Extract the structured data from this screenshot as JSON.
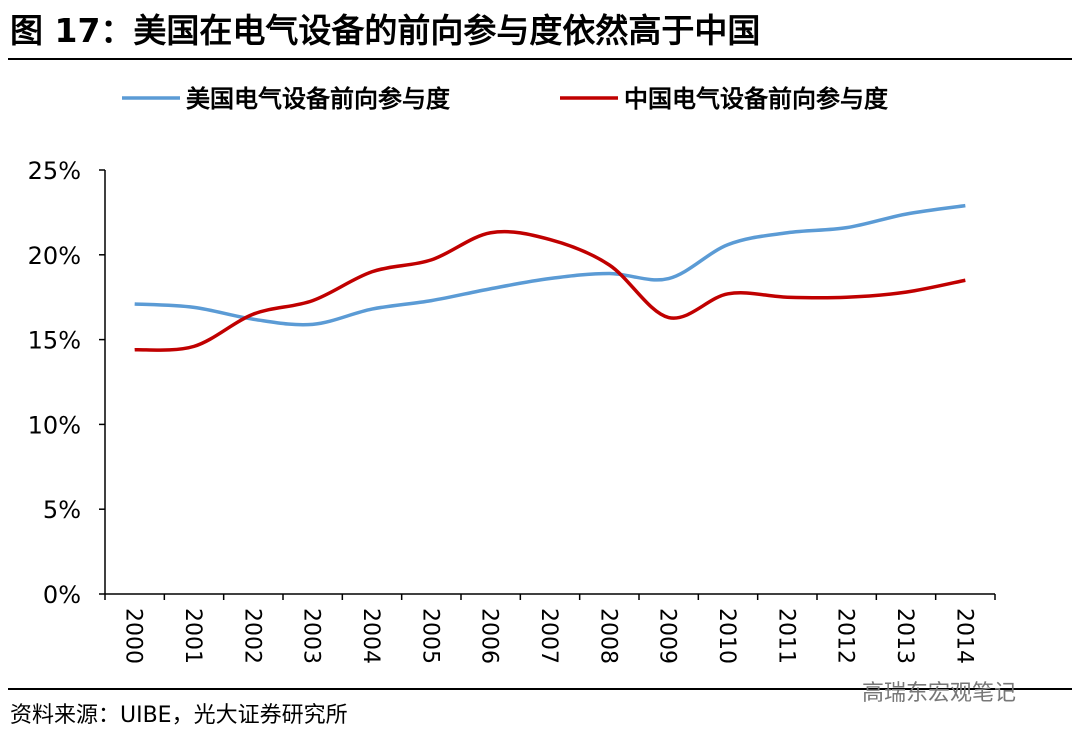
{
  "chart_data": {
    "type": "line",
    "title": "图 17：美国在电气设备的前向参与度依然高于中国",
    "categories": [
      "2000",
      "2001",
      "2002",
      "2003",
      "2004",
      "2005",
      "2006",
      "2007",
      "2008",
      "2009",
      "2010",
      "2011",
      "2012",
      "2013",
      "2014"
    ],
    "series": [
      {
        "name": "美国电气设备前向参与度",
        "color": "#5b9bd5",
        "values": [
          17.1,
          16.9,
          16.2,
          15.9,
          16.8,
          17.3,
          18.0,
          18.6,
          18.9,
          18.6,
          20.6,
          21.3,
          21.6,
          22.4,
          22.9
        ]
      },
      {
        "name": "中国电气设备前向参与度",
        "color": "#c00000",
        "values": [
          14.4,
          14.6,
          16.5,
          17.3,
          19.0,
          19.7,
          21.3,
          20.9,
          19.4,
          16.3,
          17.7,
          17.5,
          17.5,
          17.8,
          18.5
        ]
      }
    ],
    "ylim": [
      0,
      25
    ],
    "yticks": [
      {
        "value": 0,
        "label": "0%"
      },
      {
        "value": 5,
        "label": "5%"
      },
      {
        "value": 10,
        "label": "10%"
      },
      {
        "value": 15,
        "label": "15%"
      },
      {
        "value": 20,
        "label": "20%"
      },
      {
        "value": 25,
        "label": "25%"
      }
    ],
    "legend": "top",
    "source": "资料来源：UIBE，光大证券研究所",
    "watermark": "高瑞东宏观笔记"
  }
}
